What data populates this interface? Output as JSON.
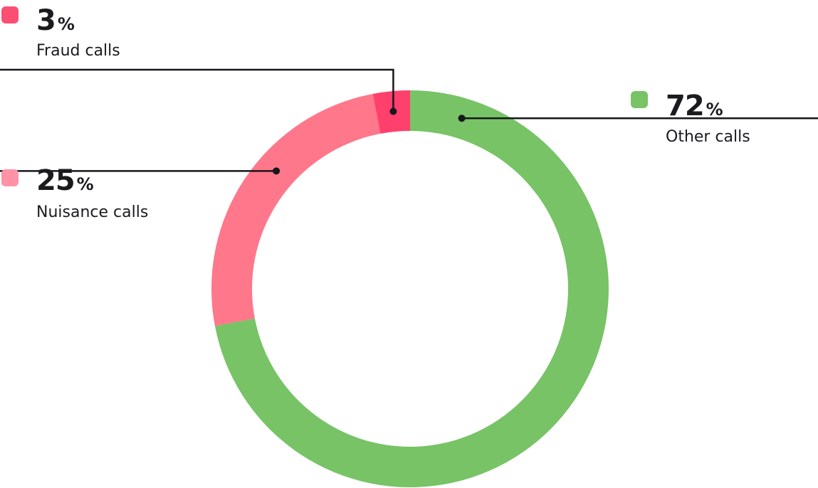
{
  "chart_data": {
    "type": "pie",
    "variant": "donut",
    "start_angle_deg": 0,
    "direction": "clockwise",
    "slices": [
      {
        "label": "Other calls",
        "value": 72,
        "display": "72",
        "unit": "%",
        "color": "#77c366"
      },
      {
        "label": "Nuisance calls",
        "value": 25,
        "display": "25",
        "unit": "%",
        "color": "#ff778a"
      },
      {
        "label": "Fraud calls",
        "value": 3,
        "display": "3",
        "unit": "%",
        "color": "#ff3f6c"
      }
    ],
    "legend": [
      {
        "label": "Fraud calls",
        "display": "3",
        "unit": "%",
        "swatch_color": "#fb4e73"
      },
      {
        "label": "Nuisance calls",
        "display": "25",
        "unit": "%",
        "swatch_color": "#ff92a6"
      },
      {
        "label": "Other calls",
        "display": "72",
        "unit": "%",
        "swatch_color": "#77c366"
      }
    ]
  }
}
